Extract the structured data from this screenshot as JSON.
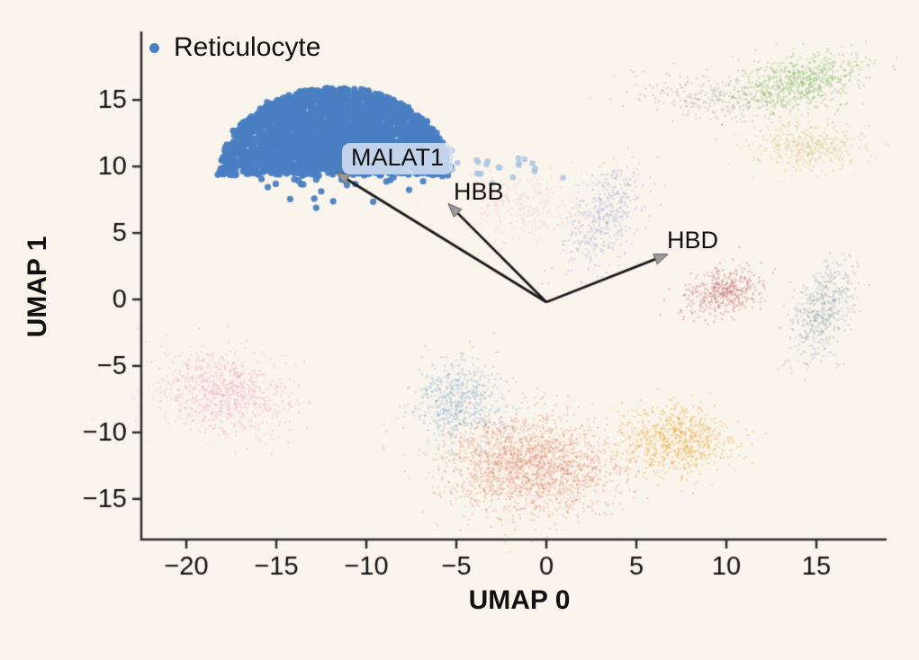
{
  "figure": {
    "background": "#faf5ec",
    "text_color": "#111111",
    "axis_color": "#2b2b2b",
    "arrow_color": "#1a1a1a",
    "arrowhead_color": "#9b9b9b"
  },
  "legend": {
    "label": "Reticulocyte",
    "marker_color": "#4a80c2"
  },
  "chart_data": {
    "type": "scatter",
    "title": "",
    "xlabel": "UMAP 0",
    "ylabel": "UMAP 1",
    "xlim": [
      -22.5,
      18.9
    ],
    "ylim": [
      -18.05,
      20.15
    ],
    "xticks": [
      -20,
      -15,
      -10,
      -5,
      0,
      5,
      10,
      15
    ],
    "yticks": [
      15,
      10,
      5,
      0,
      -5,
      -10,
      -15
    ],
    "grid": false,
    "legend_position": "upper left",
    "series": [
      {
        "name": "reticulocyte",
        "highlight": true,
        "shape": "dome",
        "center": [
          -11.75,
          9.4
        ],
        "rx": 6.45,
        "ry": 6.5,
        "count": 2600,
        "outliers": 22,
        "color": "#4a80c2",
        "alpha": 0.95,
        "size": 3.6
      },
      {
        "name": "reticulocyte-halo",
        "shape": "gauss",
        "center": [
          -2.5,
          9.8
        ],
        "sx": 1.3,
        "sy": 0.8,
        "tilt": 0,
        "count": 22,
        "color": "#aac6e4",
        "alpha": 0.85,
        "size": 3.3
      },
      {
        "name": "pink-left",
        "shape": "gauss",
        "center": [
          -17.9,
          -7.0
        ],
        "sx": 1.9,
        "sy": 1.5,
        "tilt": -25,
        "count": 800,
        "color": "#ee9fbb",
        "alpha": 0.28,
        "size": 1.3
      },
      {
        "name": "steelblue-bottom",
        "shape": "gauss",
        "center": [
          -4.85,
          -7.7
        ],
        "sx": 1.35,
        "sy": 1.55,
        "tilt": 0,
        "count": 560,
        "color": "#7ca6cd",
        "alpha": 0.3,
        "size": 1.3
      },
      {
        "name": "salmon-bottom",
        "shape": "gauss",
        "center": [
          -0.8,
          -12.5
        ],
        "sx": 2.4,
        "sy": 1.9,
        "tilt": 0,
        "count": 1900,
        "color": "#dd8a70",
        "alpha": 0.3,
        "size": 1.3
      },
      {
        "name": "orange-bottom-right",
        "shape": "gauss",
        "center": [
          7.1,
          -10.6
        ],
        "sx": 1.6,
        "sy": 1.25,
        "tilt": 0,
        "count": 700,
        "color": "#e8a93e",
        "alpha": 0.33,
        "size": 1.3
      },
      {
        "name": "dustyred-right",
        "shape": "gauss",
        "center": [
          9.8,
          0.6
        ],
        "sx": 1.2,
        "sy": 0.85,
        "tilt": 30,
        "count": 400,
        "color": "#c26b71",
        "alpha": 0.33,
        "size": 1.3
      },
      {
        "name": "slate-right",
        "shape": "gauss",
        "center": [
          15.35,
          -0.8
        ],
        "sx": 0.75,
        "sy": 1.9,
        "tilt": -15,
        "count": 470,
        "color": "#93aab9",
        "alpha": 0.33,
        "size": 1.3
      },
      {
        "name": "periwinkle-center",
        "shape": "gauss",
        "center": [
          3.1,
          6.2
        ],
        "sx": 0.85,
        "sy": 2.1,
        "tilt": -20,
        "count": 430,
        "color": "#99a5d6",
        "alpha": 0.3,
        "size": 1.3
      },
      {
        "name": "pink-center",
        "shape": "gauss",
        "center": [
          -1.2,
          6.9
        ],
        "sx": 1.7,
        "sy": 1.2,
        "tilt": 0,
        "count": 280,
        "color": "#e9a3b4",
        "alpha": 0.2,
        "size": 1.2
      },
      {
        "name": "green-top-right",
        "shape": "gauss",
        "center": [
          14.2,
          16.4
        ],
        "sx": 1.7,
        "sy": 1.0,
        "tilt": 10,
        "count": 620,
        "color": "#85ba68",
        "alpha": 0.33,
        "size": 1.3
      },
      {
        "name": "olive-trail",
        "shape": "gauss",
        "center": [
          9.6,
          15.2
        ],
        "sx": 2.3,
        "sy": 0.85,
        "tilt": -5,
        "count": 300,
        "color": "#9aa487",
        "alpha": 0.3,
        "size": 1.3
      },
      {
        "name": "tan-top-right",
        "shape": "gauss",
        "center": [
          14.5,
          11.6
        ],
        "sx": 1.5,
        "sy": 0.95,
        "tilt": 0,
        "count": 400,
        "color": "#dcc489",
        "alpha": 0.33,
        "size": 1.3
      }
    ],
    "annotations": [
      {
        "gene": "MALAT1",
        "arrow_from": [
          0,
          -0.2
        ],
        "arrow_to": [
          -11.7,
          9.55
        ],
        "label_pos": [
          -11.35,
          11.76
        ],
        "chip": true
      },
      {
        "gene": "HBB",
        "arrow_from": [
          0,
          -0.2
        ],
        "arrow_to": [
          -5.45,
          7.2
        ],
        "label_pos": [
          -5.15,
          9.12
        ],
        "chip": false
      },
      {
        "gene": "HBD",
        "arrow_from": [
          0,
          -0.2
        ],
        "arrow_to": [
          6.75,
          3.4
        ],
        "label_pos": [
          6.7,
          5.48
        ],
        "chip": false
      }
    ]
  }
}
